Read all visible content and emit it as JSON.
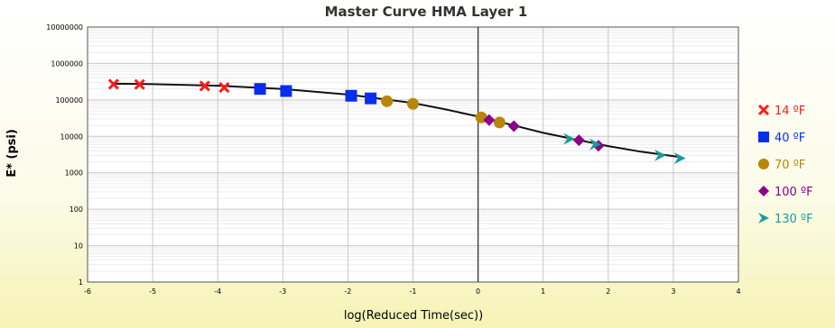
{
  "chart_data": {
    "type": "scatter",
    "title": "Master Curve HMA Layer  1",
    "xlabel": "log(Reduced Time(sec))",
    "ylabel": "E* (psi)",
    "xlim": [
      -6,
      4
    ],
    "ylim": [
      1,
      10000000
    ],
    "y_scale": "log",
    "grid": true,
    "legend_position": "right",
    "x_ticks": [
      "-6",
      "-5",
      "-4",
      "-3",
      "-2",
      "-1",
      "0",
      "1",
      "2",
      "3",
      "4"
    ],
    "y_ticks": [
      "1",
      "10",
      "100",
      "1000",
      "10000",
      "100000",
      "1000000",
      "10000000"
    ],
    "series": [
      {
        "name": "14 ºF",
        "marker": "x",
        "color": "#ff1a1a",
        "x": [
          -5.6,
          -5.2,
          -4.2,
          -3.9
        ],
        "y": [
          270000,
          265000,
          240000,
          220000
        ]
      },
      {
        "name": "40 ºF",
        "marker": "square",
        "color": "#0a2cf0",
        "x": [
          -3.35,
          -2.95,
          -1.95,
          -1.65
        ],
        "y": [
          200000,
          175000,
          130000,
          110000
        ]
      },
      {
        "name": "70 ºF",
        "marker": "circle",
        "color": "#b8860b",
        "x": [
          -1.4,
          -1.0,
          0.05,
          0.33
        ],
        "y": [
          92000,
          78000,
          33000,
          24000
        ]
      },
      {
        "name": "100 ºF",
        "marker": "diamond",
        "color": "#8b008b",
        "x": [
          0.17,
          0.55,
          1.55,
          1.85
        ],
        "y": [
          28000,
          19000,
          7800,
          5500
        ]
      },
      {
        "name": "130 ºF",
        "marker": "triangle-right",
        "color": "#1a9a9a",
        "x": [
          1.4,
          1.8,
          2.8,
          3.1
        ],
        "y": [
          8500,
          6000,
          3000,
          2500
        ]
      }
    ],
    "fit_curve": {
      "x": [
        -5.6,
        -5,
        -4,
        -3,
        -2,
        -1,
        -0.5,
        0,
        0.5,
        1,
        1.5,
        2,
        2.5,
        3,
        3.1
      ],
      "y": [
        280000,
        270000,
        245000,
        200000,
        140000,
        82000,
        55000,
        35000,
        21000,
        12500,
        8200,
        5400,
        3800,
        2850,
        2700
      ]
    }
  }
}
